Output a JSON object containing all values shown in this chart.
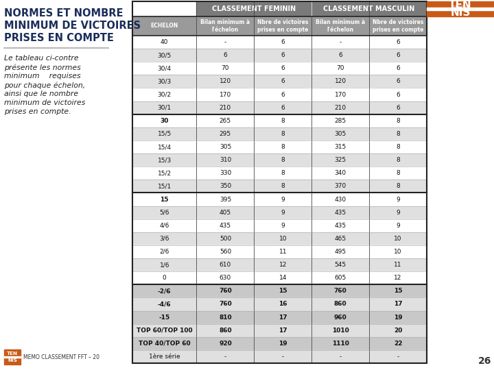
{
  "title": "NORMES ET NOMBRE\nMINIMUM DE VICTOIRES\nPRISES EN COMPTE",
  "subtitle": "Le tableau ci-contre\nprésente les normes\nminimum    requises\npour chaque échelon,\nainsi que le nombre\nminimum de victoires\nprises en compte.",
  "header_row1_fem": "CLASSEMENT FEMININ",
  "header_row1_mas": "CLASSEMENT MASCULIN",
  "header_row2": [
    "ECHELON",
    "Bilan minimum à\nl'échelon",
    "Nbre de victoires\nprises en compte",
    "Bilan minimum à\nl'échelon",
    "Nbre de victoires\nprises en compte"
  ],
  "rows": [
    [
      "40",
      "-",
      "6",
      "-",
      "6"
    ],
    [
      "30/5",
      "6",
      "6",
      "6",
      "6"
    ],
    [
      "30/4",
      "70",
      "6",
      "70",
      "6"
    ],
    [
      "30/3",
      "120",
      "6",
      "120",
      "6"
    ],
    [
      "30/2",
      "170",
      "6",
      "170",
      "6"
    ],
    [
      "30/1",
      "210",
      "6",
      "210",
      "6"
    ],
    [
      "30",
      "265",
      "8",
      "285",
      "8"
    ],
    [
      "15/5",
      "295",
      "8",
      "305",
      "8"
    ],
    [
      "15/4",
      "305",
      "8",
      "315",
      "8"
    ],
    [
      "15/3",
      "310",
      "8",
      "325",
      "8"
    ],
    [
      "15/2",
      "330",
      "8",
      "340",
      "8"
    ],
    [
      "15/1",
      "350",
      "8",
      "370",
      "8"
    ],
    [
      "15",
      "395",
      "9",
      "430",
      "9"
    ],
    [
      "5/6",
      "405",
      "9",
      "435",
      "9"
    ],
    [
      "4/6",
      "435",
      "9",
      "435",
      "9"
    ],
    [
      "3/6",
      "500",
      "10",
      "465",
      "10"
    ],
    [
      "2/6",
      "560",
      "11",
      "495",
      "10"
    ],
    [
      "1/6",
      "610",
      "12",
      "545",
      "11"
    ],
    [
      "0",
      "630",
      "14",
      "605",
      "12"
    ],
    [
      "-2/6",
      "760",
      "15",
      "760",
      "15"
    ],
    [
      "-4/6",
      "760",
      "16",
      "860",
      "17"
    ],
    [
      "-15",
      "810",
      "17",
      "960",
      "19"
    ],
    [
      "TOP 60/TOP 100",
      "860",
      "17",
      "1010",
      "20"
    ],
    [
      "TOP 40/TOP 60",
      "920",
      "19",
      "1110",
      "22"
    ],
    [
      "1ère série",
      "-",
      "-",
      "-",
      "-"
    ]
  ],
  "thick_sep_after": [
    5,
    11,
    18
  ],
  "bold_echelon_rows": [
    6,
    12,
    19
  ],
  "all_bold_rows": [
    19,
    20,
    21,
    22,
    23
  ],
  "bg_color": "#ffffff",
  "header1_bg": "#7a7a7a",
  "header1_fg": "#ffffff",
  "header2_bg": "#9a9a9a",
  "header2_fg": "#ffffff",
  "row_white": "#ffffff",
  "row_light_gray": "#e0e0e0",
  "row_medium_gray": "#c8c8c8",
  "footer_text": "MEMO CLASSEMENT FFT – 20",
  "page_number": "26",
  "logo_color": "#c85a17",
  "title_color": "#1a2d5a"
}
